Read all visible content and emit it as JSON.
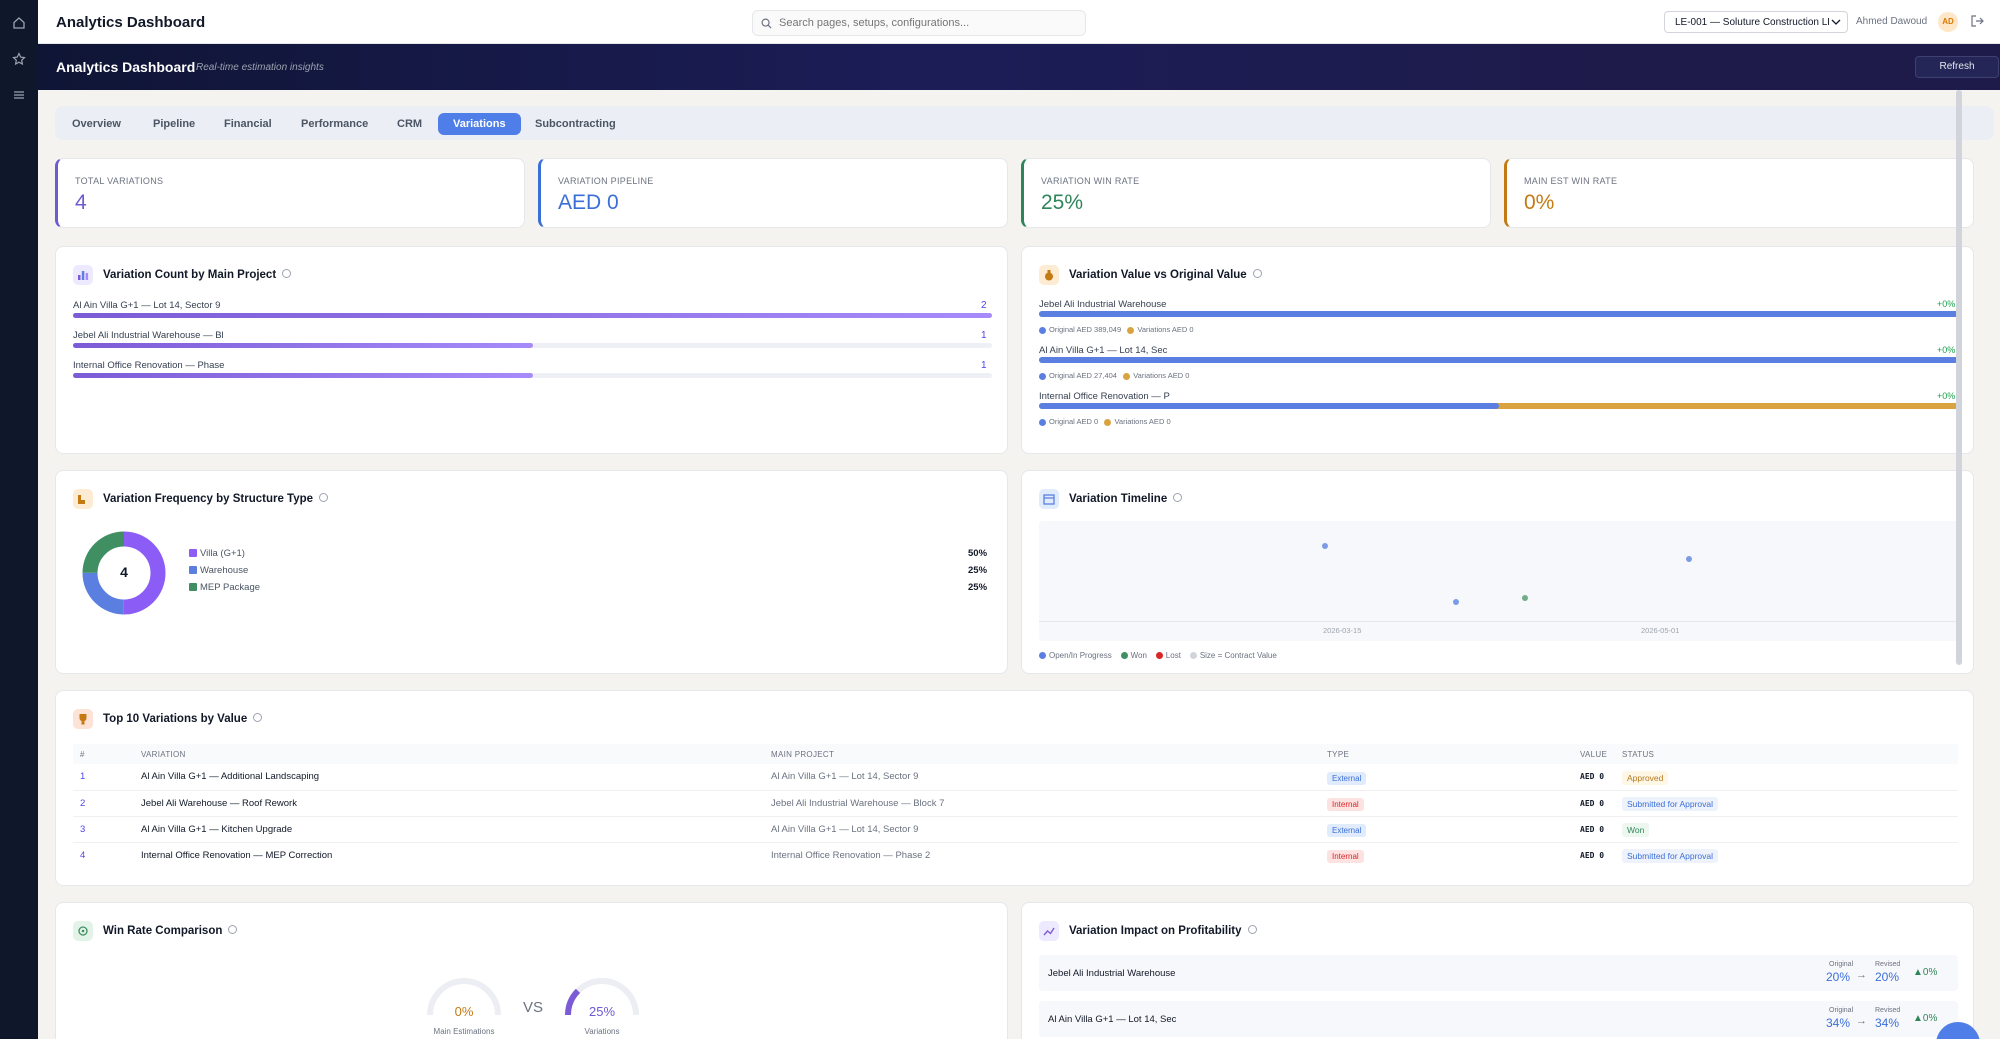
{
  "app": {
    "title": "Analytics Dashboard",
    "search_placeholder": "Search pages, setups, configurations...",
    "company": "LE-001 — Soluture Construction LLC",
    "user": "Ahmed Dawoud",
    "avatar": "AD"
  },
  "hero": {
    "title": "Analytics Dashboard",
    "subtitle": "Real-time estimation insights",
    "refresh": "Refresh"
  },
  "tabs": [
    "Overview",
    "Pipeline",
    "Financial",
    "Performance",
    "CRM",
    "Variations",
    "Subcontracting"
  ],
  "active_tab": "Variations",
  "kpis": [
    {
      "label": "TOTAL VARIATIONS",
      "value": "4",
      "color": "#6d5bd0"
    },
    {
      "label": "VARIATION PIPELINE",
      "value": "AED 0",
      "color": "#3b6fd8"
    },
    {
      "label": "VARIATION WIN RATE",
      "value": "25%",
      "color": "#2f855a"
    },
    {
      "label": "MAIN EST WIN RATE",
      "value": "0%",
      "color": "#c47a12"
    }
  ],
  "count_card": {
    "title": "Variation Count by Main Project",
    "rows": [
      {
        "label": "Al Ain Villa G+1 — Lot 14, Sector 9",
        "count": "2",
        "value": 2
      },
      {
        "label": "Jebel Ali Industrial Warehouse — Bl",
        "count": "1",
        "value": 1
      },
      {
        "label": "Internal Office Renovation — Phase",
        "count": "1",
        "value": 1
      }
    ]
  },
  "value_card": {
    "title": "Variation Value vs Original Value",
    "rows": [
      {
        "label": "Jebel Ali Industrial Warehouse",
        "pct": "+0%",
        "original": "Original AED 389,049",
        "variations": "Variations AED 0",
        "original_share": 1.0
      },
      {
        "label": "Al Ain Villa G+1 — Lot 14, Sec",
        "pct": "+0%",
        "original": "Original AED 27,404",
        "variations": "Variations AED 0",
        "original_share": 1.0
      },
      {
        "label": "Internal Office Renovation — P",
        "pct": "+0%",
        "original": "Original AED 0",
        "variations": "Variations AED 0",
        "original_share": 0.5
      }
    ]
  },
  "freq_card": {
    "title": "Variation Frequency by Structure Type",
    "center": "4",
    "items": [
      {
        "label": "Villa (G+1)",
        "pct": "50%",
        "color": "#8b5cf6",
        "value": 50
      },
      {
        "label": "Warehouse",
        "pct": "25%",
        "color": "#5b7fe0",
        "value": 25
      },
      {
        "label": "MEP Package",
        "pct": "25%",
        "color": "#3f8f63",
        "value": 25
      }
    ]
  },
  "timeline_card": {
    "title": "Variation Timeline",
    "ticks": [
      "2026-03-15",
      "2026-05-01"
    ],
    "legend": [
      "Open/In Progress",
      "Won",
      "Lost",
      "Size = Contract Value"
    ],
    "colors": [
      "#5b7fe0",
      "#3f8f63",
      "#dc2626",
      "#d1d5db"
    ]
  },
  "top_card": {
    "title": "Top 10 Variations by Value",
    "headers": [
      "#",
      "VARIATION",
      "MAIN PROJECT",
      "TYPE",
      "VALUE",
      "STATUS"
    ],
    "rows": [
      {
        "n": "1",
        "variation": "Al Ain Villa G+1 — Additional Landscaping",
        "project": "Al Ain Villa G+1 — Lot 14, Sector 9",
        "type": "External",
        "value": "AED 0",
        "status": "Approved"
      },
      {
        "n": "2",
        "variation": "Jebel Ali Warehouse — Roof Rework",
        "project": "Jebel Ali Industrial Warehouse — Block 7",
        "type": "Internal",
        "value": "AED 0",
        "status": "Submitted for Approval"
      },
      {
        "n": "3",
        "variation": "Al Ain Villa G+1 — Kitchen Upgrade",
        "project": "Al Ain Villa G+1 — Lot 14, Sector 9",
        "type": "External",
        "value": "AED 0",
        "status": "Won"
      },
      {
        "n": "4",
        "variation": "Internal Office Renovation — MEP Correction",
        "project": "Internal Office Renovation — Phase 2",
        "type": "Internal",
        "value": "AED 0",
        "status": "Submitted for Approval"
      }
    ]
  },
  "winrate_card": {
    "title": "Win Rate Comparison",
    "left": {
      "value": "0%",
      "label": "Main Estimations",
      "level": 0
    },
    "vs": "VS",
    "right": {
      "value": "25%",
      "label": "Variations",
      "level": 25
    }
  },
  "impact_card": {
    "title": "Variation Impact on Profitability",
    "original_label": "Original",
    "revised_label": "Revised",
    "rows": [
      {
        "label": "Jebel Ali Industrial Warehouse",
        "original": "20%",
        "revised": "20%",
        "delta": "▲0%"
      },
      {
        "label": "Al Ain Villa G+1 — Lot 14, Sec",
        "original": "34%",
        "revised": "34%",
        "delta": "▲0%"
      }
    ]
  }
}
